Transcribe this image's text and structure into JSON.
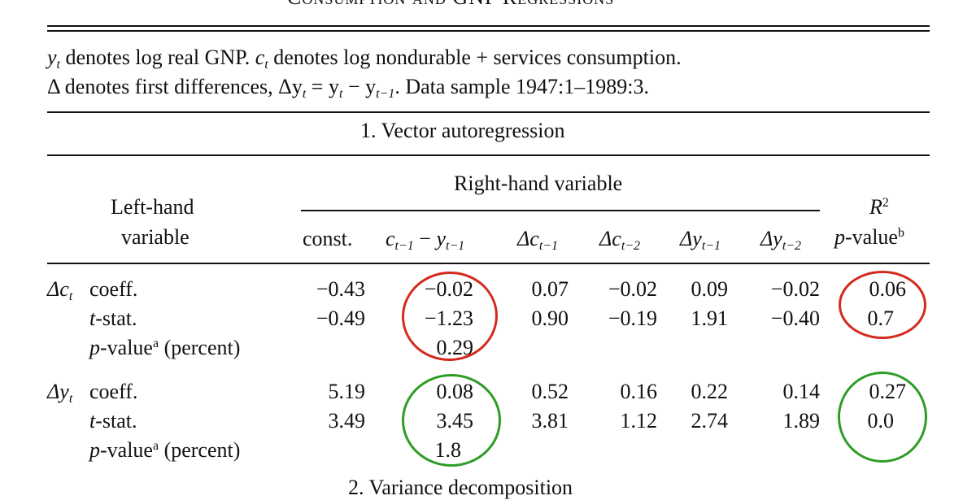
{
  "table": {
    "title": "Consumption and GNP Regressions",
    "notes": {
      "line1_y": "y",
      "line1_y_sub": "t",
      "line1_a": " denotes log real GNP. ",
      "line1_c": "c",
      "line1_c_sub": "t",
      "line1_b": " denotes log nondurable + services consumption.",
      "line2": "Δ denotes first differences, Δy",
      "line2_sub1": "t",
      "line2_eq": " = y",
      "line2_sub2": "t",
      "line2_minus": " − y",
      "line2_sub3": "t−1",
      "line2_end": ". Data sample 1947:1–1989:3."
    },
    "section1": "1. Vector autoregression",
    "section2_partial": "2. Variance decomposition",
    "headers": {
      "left_hand_1": "Left-hand",
      "left_hand_2": "variable",
      "right_hand": "Right-hand variable",
      "r2": "R",
      "r2_sup": "2",
      "pvalue": "p",
      "pvalue_rest": "-value",
      "pvalue_sup": "b",
      "columns": {
        "const": "const.",
        "c_lag": "c",
        "c_lag_sub": "t−1",
        "minus": " − ",
        "y_lag": "y",
        "y_lag_sub": "t−1",
        "dc1": "Δc",
        "dc1_sub": "t−1",
        "dc2": "Δc",
        "dc2_sub": "t−2",
        "dy1": "Δy",
        "dy1_sub": "t−1",
        "dy2": "Δy",
        "dy2_sub": "t−2"
      }
    },
    "rows": {
      "dc": {
        "var": "Δc",
        "var_sub": "t",
        "coeff_label": "coeff.",
        "tstat_label_it": "t",
        "tstat_label": "-stat.",
        "pval_label_it": "p",
        "pval_label": "-value",
        "pval_sup": "a",
        "pval_unit": " (percent)",
        "coeff": [
          "−0.43",
          "−0.02",
          "0.07",
          "−0.02",
          "0.09",
          "−0.02",
          "0.06"
        ],
        "tstat": [
          "−0.49",
          "−1.23",
          "0.90",
          "−0.19",
          "1.91",
          "−0.40",
          "0.7"
        ],
        "pval": "0.29"
      },
      "dy": {
        "var": "Δy",
        "var_sub": "t",
        "coeff_label": "coeff.",
        "tstat_label_it": "t",
        "tstat_label": "-stat.",
        "pval_label_it": "p",
        "pval_label": "-value",
        "pval_sup": "a",
        "pval_unit": " (percent)",
        "coeff": [
          "5.19",
          "0.08",
          "0.52",
          "0.16",
          "0.22",
          "0.14",
          "0.27"
        ],
        "tstat": [
          "3.49",
          "3.45",
          "3.81",
          "1.12",
          "2.74",
          "1.89",
          "0.0"
        ],
        "pval": "1.8"
      }
    },
    "annotation_colors": {
      "red": "#d42a1e",
      "green": "#2e9c25"
    }
  }
}
